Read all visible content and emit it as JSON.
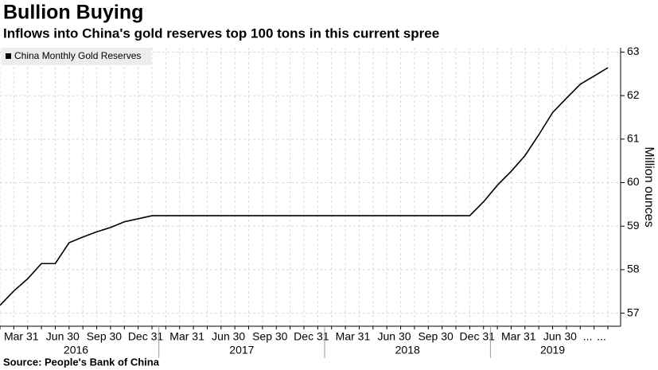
{
  "chart_data": {
    "type": "line",
    "title": "Bullion Buying",
    "subtitle": "Inflows into China's gold reserves top 100 tons in this current spree",
    "source": "Source: People's Bank of China",
    "y_label": "Million ounces",
    "categories": [
      null,
      null,
      "Mar 31",
      null,
      null,
      "Jun 30",
      null,
      null,
      "Sep 30",
      null,
      null,
      "Dec 31",
      null,
      null,
      "Mar 31",
      null,
      null,
      "Jun 30",
      null,
      null,
      "Sep 30",
      null,
      null,
      "Dec 31",
      null,
      null,
      "Mar 31",
      null,
      null,
      "Jun 30",
      null,
      null,
      "Sep 30",
      null,
      null,
      "Dec 31",
      null,
      null,
      "Mar 31",
      null,
      null,
      "Jun 30",
      null,
      "...",
      "..."
    ],
    "x_groups": [
      "2016",
      "2017",
      "2018",
      "2019"
    ],
    "series": [
      {
        "name": "China Monthly Gold Reserves",
        "color": "#000000",
        "values": [
          57.18,
          57.51,
          57.79,
          58.14,
          58.14,
          58.62,
          58.75,
          58.87,
          58.97,
          59.1,
          59.17,
          59.24,
          59.24,
          59.24,
          59.24,
          59.24,
          59.24,
          59.24,
          59.24,
          59.24,
          59.24,
          59.24,
          59.24,
          59.24,
          59.24,
          59.24,
          59.24,
          59.24,
          59.24,
          59.24,
          59.24,
          59.24,
          59.24,
          59.24,
          59.24,
          59.56,
          59.94,
          60.26,
          60.62,
          61.1,
          61.61,
          61.94,
          62.26,
          62.45,
          62.64
        ]
      }
    ],
    "ylim": [
      56.7,
      63.1
    ],
    "yticks": [
      57,
      58,
      59,
      60,
      61,
      62,
      63
    ],
    "grid": true,
    "legend": "top-left"
  }
}
